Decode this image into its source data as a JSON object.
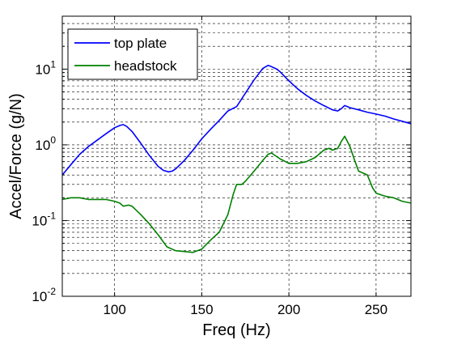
{
  "chart_data": {
    "type": "line",
    "title": "",
    "xlabel": "Freq (Hz)",
    "ylabel": "Accel/Force (g/N)",
    "xlim": [
      70,
      270
    ],
    "ylim": [
      0.01,
      50
    ],
    "yscale": "log",
    "grid": true,
    "grid_style": "dashed",
    "legend_position": "top-left",
    "x_ticks": [
      100,
      150,
      200,
      250
    ],
    "x_tick_labels": [
      "100",
      "150",
      "200",
      "250"
    ],
    "y_ticks": [
      0.01,
      0.1,
      1,
      10
    ],
    "y_tick_labels": [
      {
        "base": "10",
        "exp": "-2"
      },
      {
        "base": "10",
        "exp": "-1"
      },
      {
        "base": "10",
        "exp": "0"
      },
      {
        "base": "10",
        "exp": "1"
      }
    ],
    "series": [
      {
        "name": "top plate",
        "color": "#0000ff",
        "x": [
          70,
          75,
          80,
          85,
          90,
          95,
          100,
          103,
          105,
          107,
          110,
          115,
          120,
          125,
          128,
          131,
          133,
          135,
          140,
          145,
          150,
          155,
          160,
          165,
          170,
          175,
          180,
          185,
          188,
          190,
          193,
          195,
          200,
          205,
          210,
          215,
          220,
          225,
          228,
          230,
          232,
          235,
          240,
          245,
          250,
          255,
          260,
          265,
          270
        ],
        "y": [
          0.4,
          0.55,
          0.75,
          0.95,
          1.15,
          1.4,
          1.68,
          1.8,
          1.85,
          1.75,
          1.5,
          1.05,
          0.72,
          0.52,
          0.46,
          0.44,
          0.45,
          0.48,
          0.62,
          0.85,
          1.2,
          1.6,
          2.1,
          2.8,
          3.2,
          4.8,
          7.2,
          10.2,
          11.2,
          10.8,
          10.0,
          9.2,
          7.0,
          5.5,
          4.5,
          3.8,
          3.3,
          2.9,
          2.8,
          3.0,
          3.3,
          3.1,
          2.9,
          2.7,
          2.55,
          2.4,
          2.2,
          2.05,
          1.9
        ]
      },
      {
        "name": "headstock",
        "color": "#008000",
        "x": [
          70,
          75,
          80,
          85,
          90,
          95,
          100,
          103,
          105,
          108,
          110,
          115,
          120,
          125,
          130,
          135,
          140,
          145,
          150,
          155,
          160,
          165,
          168,
          170,
          173,
          175,
          180,
          185,
          188,
          190,
          195,
          200,
          205,
          210,
          215,
          220,
          223,
          225,
          228,
          230,
          232,
          235,
          238,
          240,
          245,
          248,
          250,
          255,
          260,
          265,
          270
        ],
        "y": [
          0.19,
          0.2,
          0.2,
          0.19,
          0.19,
          0.19,
          0.18,
          0.17,
          0.155,
          0.16,
          0.155,
          0.12,
          0.09,
          0.065,
          0.045,
          0.04,
          0.039,
          0.038,
          0.042,
          0.055,
          0.07,
          0.12,
          0.22,
          0.3,
          0.3,
          0.33,
          0.45,
          0.62,
          0.75,
          0.78,
          0.65,
          0.57,
          0.57,
          0.6,
          0.68,
          0.85,
          0.9,
          0.85,
          0.9,
          1.1,
          1.3,
          0.95,
          0.6,
          0.45,
          0.4,
          0.27,
          0.23,
          0.21,
          0.2,
          0.18,
          0.17
        ]
      }
    ]
  }
}
